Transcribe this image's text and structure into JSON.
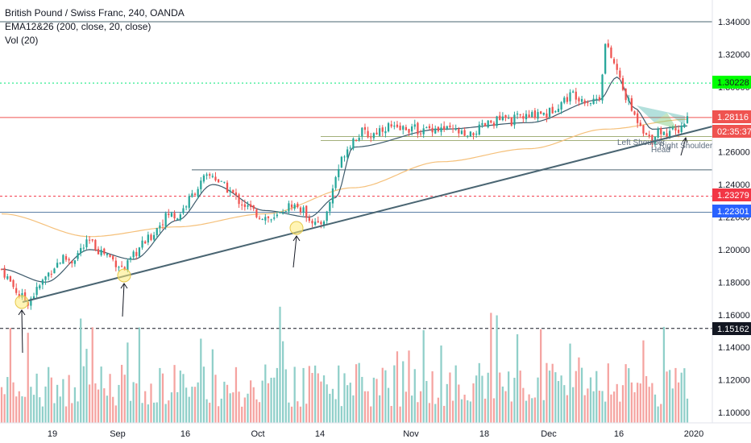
{
  "legend": {
    "symbol_line": "British Pound / Swiss Franc, 240, OANDA",
    "ema_line": "EMA12&26 (200, close, 20, close)",
    "vol_line": "Vol (20)"
  },
  "price_tags": [
    {
      "label": "1.30228",
      "bg": "#00ff00",
      "fg": "#131722"
    },
    {
      "label": "1.28116",
      "bg": "#ef5350",
      "fg": "#ffffff"
    },
    {
      "label": "02:35:37",
      "bg": "#ef5350",
      "fg": "#ffffff"
    },
    {
      "label": "1.23279",
      "bg": "#f23645",
      "fg": "#ffffff"
    },
    {
      "label": "1.22301",
      "bg": "#2962ff",
      "fg": "#ffffff"
    },
    {
      "label": "1.15162",
      "bg": "#131722",
      "fg": "#ffffff"
    }
  ],
  "annotations": {
    "left_shoulder": "Left Shoulder",
    "head": "Head",
    "right_shoulder": "Right Shoulder"
  },
  "colors": {
    "up": "#26a69a",
    "down": "#ef5350",
    "ema_long": "#f5c07a",
    "ema_short": "#3d5a6b",
    "trendline": "#4a6572",
    "volume_up": "#8fcfc9",
    "volume_down": "#f5a3a0"
  },
  "chart_data": {
    "type": "candlestick",
    "title": "British Pound / Swiss Franc, 240, OANDA",
    "y_axis": {
      "ticks": [
        "1.34000",
        "1.32000",
        "1.30000",
        "1.28000",
        "1.26000",
        "1.24000",
        "1.22000",
        "1.20000",
        "1.18000",
        "1.16000",
        "1.14000",
        "1.12000",
        "1.10000"
      ],
      "range": [
        1.095,
        1.345
      ]
    },
    "x_axis": {
      "ticks": [
        "19",
        "Sep",
        "16",
        "Oct",
        "14",
        "Nov",
        "18",
        "Dec",
        "16",
        "2020"
      ]
    },
    "close_path": [
      [
        0,
        1.188
      ],
      [
        3,
        1.18
      ],
      [
        6,
        1.172
      ],
      [
        9,
        1.168
      ],
      [
        12,
        1.175
      ],
      [
        15,
        1.183
      ],
      [
        18,
        1.19
      ],
      [
        21,
        1.195
      ],
      [
        24,
        1.193
      ],
      [
        27,
        1.2
      ],
      [
        30,
        1.205
      ],
      [
        33,
        1.2
      ],
      [
        36,
        1.197
      ],
      [
        39,
        1.192
      ],
      [
        42,
        1.188
      ],
      [
        45,
        1.196
      ],
      [
        48,
        1.203
      ],
      [
        51,
        1.208
      ],
      [
        54,
        1.216
      ],
      [
        57,
        1.222
      ],
      [
        60,
        1.22
      ],
      [
        63,
        1.228
      ],
      [
        66,
        1.236
      ],
      [
        69,
        1.243
      ],
      [
        72,
        1.246
      ],
      [
        75,
        1.24
      ],
      [
        78,
        1.236
      ],
      [
        81,
        1.23
      ],
      [
        84,
        1.226
      ],
      [
        87,
        1.222
      ],
      [
        90,
        1.22
      ],
      [
        93,
        1.218
      ],
      [
        96,
        1.224
      ],
      [
        99,
        1.228
      ],
      [
        102,
        1.225
      ],
      [
        105,
        1.22
      ],
      [
        108,
        1.214
      ],
      [
        111,
        1.222
      ],
      [
        114,
        1.245
      ],
      [
        117,
        1.26
      ],
      [
        120,
        1.268
      ],
      [
        123,
        1.272
      ],
      [
        126,
        1.27
      ],
      [
        129,
        1.274
      ],
      [
        132,
        1.276
      ],
      [
        135,
        1.273
      ],
      [
        138,
        1.275
      ],
      [
        141,
        1.274
      ],
      [
        144,
        1.273
      ],
      [
        147,
        1.275
      ],
      [
        150,
        1.274
      ],
      [
        153,
        1.273
      ],
      [
        156,
        1.272
      ],
      [
        159,
        1.268
      ],
      [
        162,
        1.273
      ],
      [
        165,
        1.276
      ],
      [
        168,
        1.279
      ],
      [
        171,
        1.28
      ],
      [
        174,
        1.279
      ],
      [
        177,
        1.282
      ],
      [
        180,
        1.281
      ],
      [
        183,
        1.285
      ],
      [
        186,
        1.283
      ],
      [
        189,
        1.288
      ],
      [
        192,
        1.292
      ],
      [
        195,
        1.296
      ],
      [
        198,
        1.293
      ],
      [
        201,
        1.291
      ],
      [
        204,
        1.294
      ],
      [
        206,
        1.326
      ],
      [
        208,
        1.318
      ],
      [
        210,
        1.31
      ],
      [
        212,
        1.298
      ],
      [
        214,
        1.29
      ],
      [
        216,
        1.282
      ],
      [
        218,
        1.278
      ],
      [
        220,
        1.27
      ],
      [
        222,
        1.268
      ],
      [
        224,
        1.274
      ],
      [
        226,
        1.271
      ],
      [
        228,
        1.273
      ],
      [
        230,
        1.272
      ],
      [
        232,
        1.276
      ],
      [
        234,
        1.281
      ]
    ],
    "support_levels": [
      "1.34000",
      "1.30228",
      "1.28116",
      "1.24900",
      "1.23279",
      "1.22301",
      "1.15162"
    ],
    "ema_long_points": [
      [
        0,
        1.222
      ],
      [
        30,
        1.208
      ],
      [
        60,
        1.214
      ],
      [
        90,
        1.222
      ],
      [
        120,
        1.238
      ],
      [
        150,
        1.254
      ],
      [
        180,
        1.262
      ],
      [
        206,
        1.274
      ],
      [
        234,
        1.28
      ]
    ],
    "ema_short_points": [
      [
        0,
        1.188
      ],
      [
        15,
        1.18
      ],
      [
        30,
        1.2
      ],
      [
        45,
        1.194
      ],
      [
        60,
        1.218
      ],
      [
        72,
        1.24
      ],
      [
        90,
        1.224
      ],
      [
        105,
        1.22
      ],
      [
        114,
        1.232
      ],
      [
        120,
        1.263
      ],
      [
        150,
        1.274
      ],
      [
        180,
        1.278
      ],
      [
        204,
        1.292
      ],
      [
        210,
        1.306
      ],
      [
        216,
        1.287
      ],
      [
        222,
        1.274
      ],
      [
        234,
        1.276
      ]
    ],
    "grid": false,
    "legend": "top-left"
  }
}
